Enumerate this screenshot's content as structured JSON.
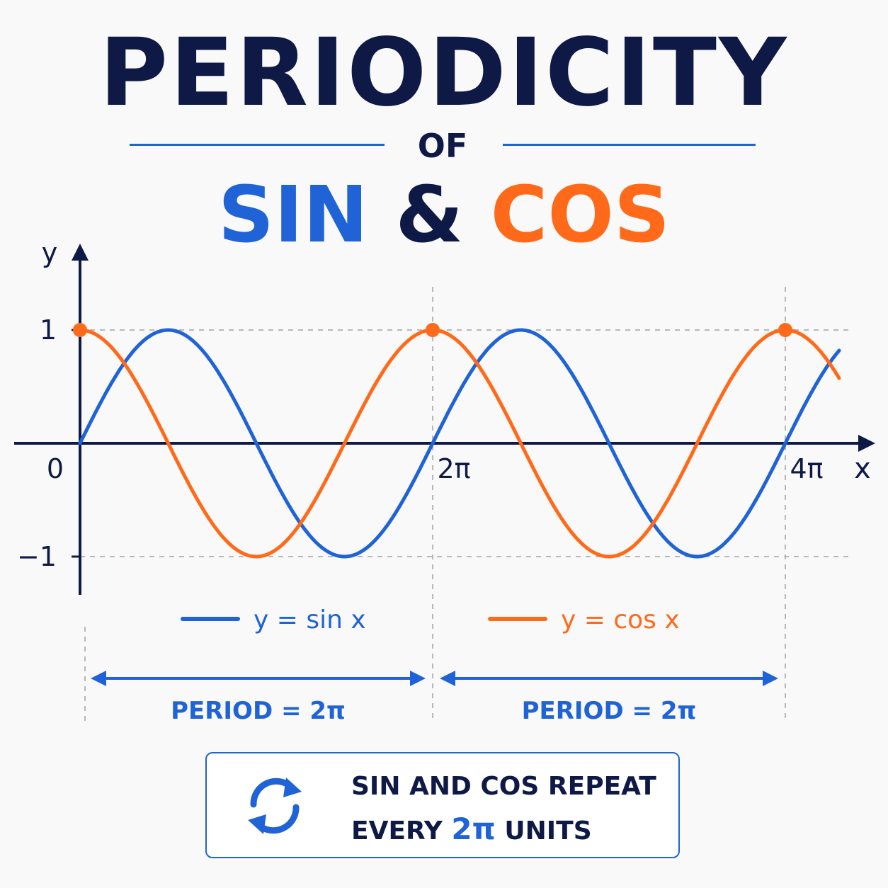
{
  "title": {
    "line1": "PERIODICITY",
    "line2": "OF",
    "sin_word": "SIN",
    "amp": "&",
    "cos_word": "COS"
  },
  "colors": {
    "navy": "#0e1a45",
    "sin": "#1f63d6",
    "cos": "#ff6a1a",
    "grid": "#b8b8b8"
  },
  "chart_data": {
    "type": "line",
    "x_unit": "radians",
    "xlim": [
      0,
      15.5
    ],
    "ylim": [
      -1.15,
      1.3
    ],
    "xlabel": "x",
    "ylabel": "y",
    "x_ticks": [
      {
        "value": 0,
        "label": "0"
      },
      {
        "value": 6.2832,
        "label": "2π"
      },
      {
        "value": 12.5664,
        "label": "4π"
      }
    ],
    "y_ticks": [
      {
        "value": 1,
        "label": "1"
      },
      {
        "value": -1,
        "label": "−1"
      }
    ],
    "grid": "dashed at y = 1, y = −1, x = 2π, x = 4π",
    "series": [
      {
        "name": "y = sin x",
        "function": "sin",
        "color": "#1f63d6"
      },
      {
        "name": "y = cos x",
        "function": "cos",
        "color": "#ff6a1a"
      }
    ],
    "highlighted_points": [
      {
        "x": 0,
        "y": 1
      },
      {
        "x": 6.2832,
        "y": 1
      },
      {
        "x": 12.5664,
        "y": 1
      }
    ],
    "periods": [
      {
        "from": 0,
        "to": 6.2832,
        "label": "PERIOD = 2π"
      },
      {
        "from": 6.2832,
        "to": 12.5664,
        "label": "PERIOD = 2π"
      }
    ],
    "legend_placement": "below plot"
  },
  "summary": {
    "line1": "SIN AND COS REPEAT",
    "line2_pre": "EVERY",
    "line2_highlight": "2π",
    "line2_post": "UNITS",
    "icon": "repeat-cycle-icon"
  }
}
